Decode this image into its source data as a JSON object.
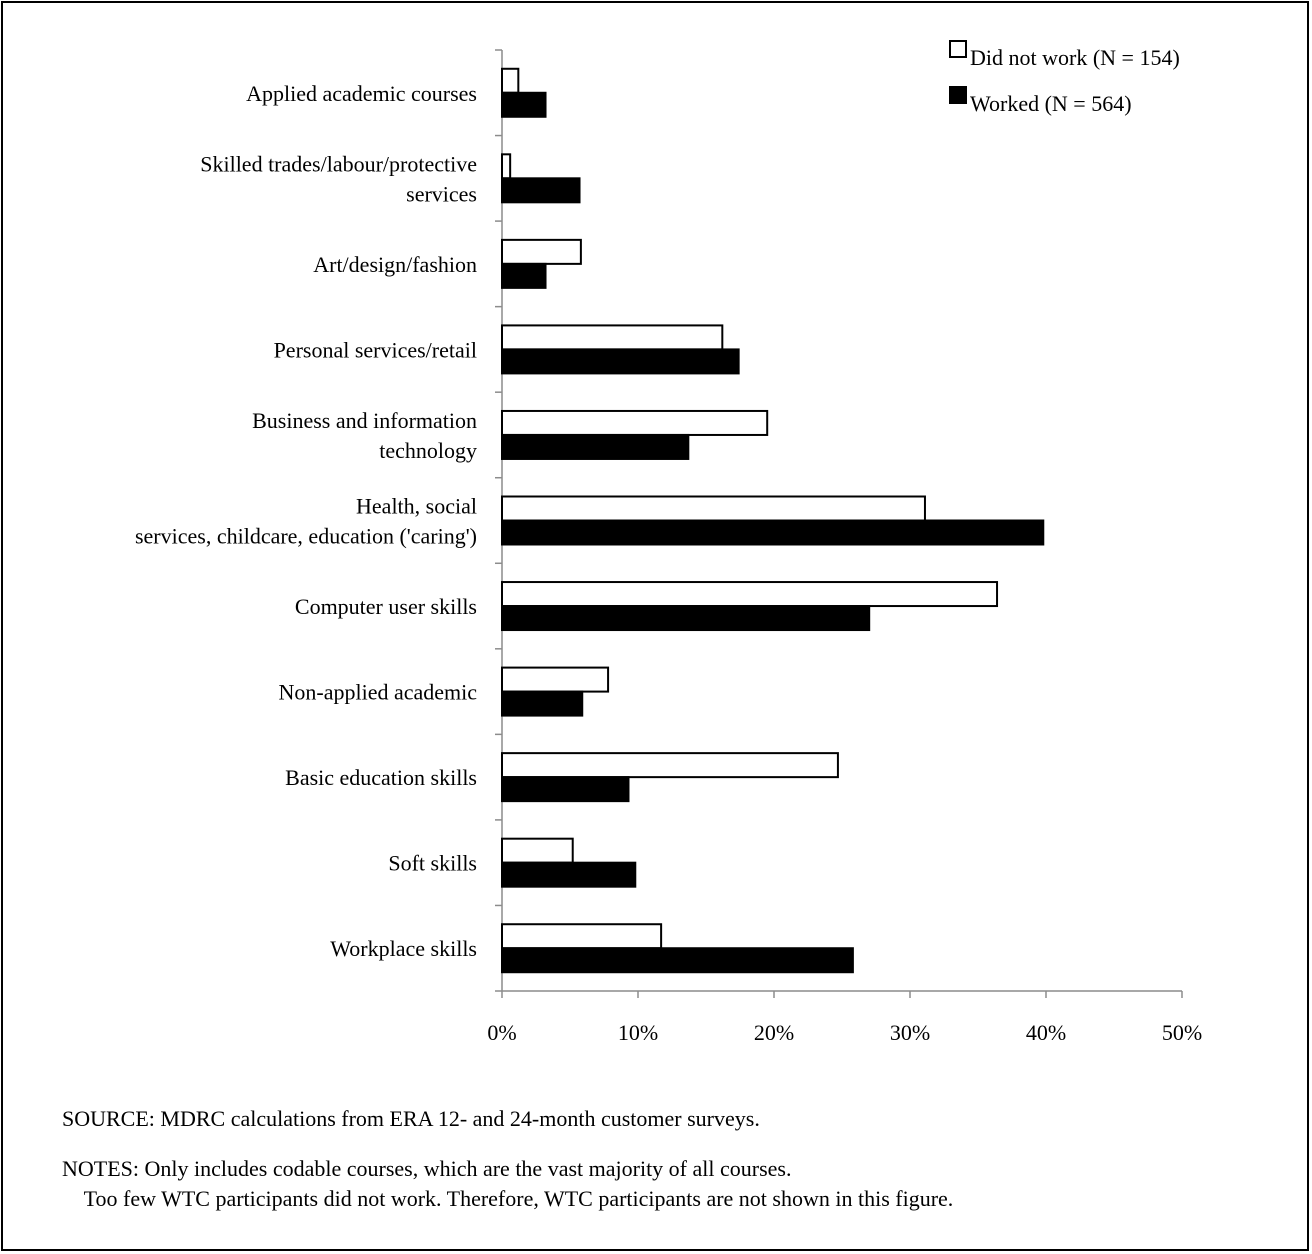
{
  "chart_data": {
    "type": "bar",
    "orientation": "horizontal",
    "categories": [
      [
        "Applied academic courses"
      ],
      [
        "Skilled trades/labour/protective",
        "services"
      ],
      [
        "Art/design/fashion"
      ],
      [
        "Personal services/retail"
      ],
      [
        "Business and information",
        "technology"
      ],
      [
        "Health, social",
        "services, childcare, education ('caring')"
      ],
      [
        "Computer user skills"
      ],
      [
        "Non-applied academic"
      ],
      [
        "Basic education skills"
      ],
      [
        "Soft skills"
      ],
      [
        "Workplace skills"
      ]
    ],
    "series": [
      {
        "name": "Did not work (N = 154)",
        "color": "#ffffff",
        "values": [
          1.2,
          0.6,
          5.8,
          16.2,
          19.5,
          31.1,
          36.4,
          7.8,
          24.7,
          5.2,
          11.7
        ]
      },
      {
        "name": "Worked (N = 564)",
        "color": "#000000",
        "values": [
          3.2,
          5.7,
          3.2,
          17.4,
          13.7,
          39.8,
          27.0,
          5.9,
          9.3,
          9.8,
          25.8
        ]
      }
    ],
    "xlim": [
      0,
      50
    ],
    "xticks": [
      "0%",
      "10%",
      "20%",
      "30%",
      "40%",
      "50%"
    ],
    "xlabel": "",
    "ylabel": "",
    "legend_position": "top-right",
    "grid": false
  },
  "notes": {
    "source": "SOURCE: MDRC calculations from ERA 12- and 24-month customer surveys.",
    "notes_line1": "NOTES: Only includes codable courses, which are the vast majority of all courses.",
    "notes_line2": "    Too few WTC participants did not work. Therefore, WTC participants are not shown in this figure."
  }
}
